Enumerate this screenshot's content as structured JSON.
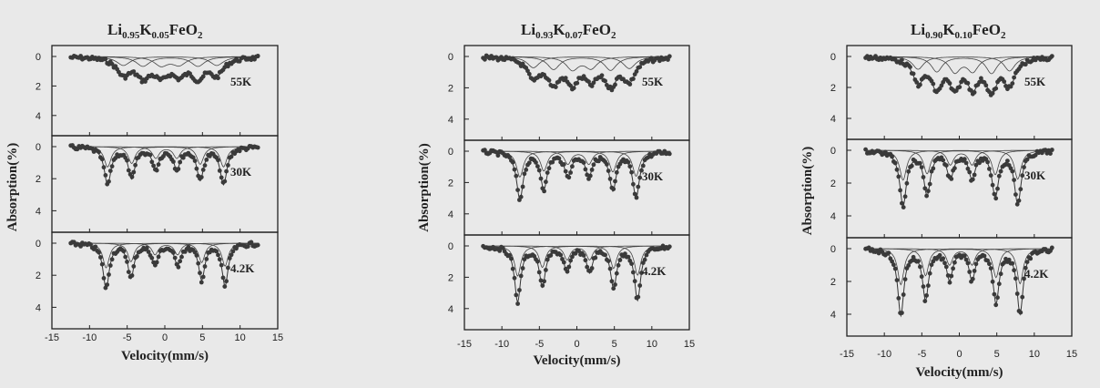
{
  "chart_data": [
    {
      "type": "scatter",
      "title_parts": {
        "base1": "Li",
        "sub1": "0.95",
        "base2": "K",
        "sub2": "0.05",
        "base3": "FeO",
        "sub3": "2"
      },
      "ylabel": "Absorption(%)",
      "xlabel": "Velocity(mm/s)",
      "xlim": [
        -15,
        15
      ],
      "xticks": [
        "-15",
        "-10",
        "-5",
        "0",
        "5",
        "10",
        "15"
      ],
      "panels": [
        {
          "label": "55K",
          "ylim": [
            0,
            5
          ],
          "yticks": [
            "0",
            "2",
            "4"
          ],
          "lines": [
            -5.5,
            -2.9,
            -0.5,
            1.9,
            4.4,
            6.9
          ],
          "depths": [
            1.1,
            1.2,
            1.1,
            1.0,
            1.2,
            1.1
          ],
          "width": 1.1
        },
        {
          "label": "30K",
          "ylim": [
            0,
            5
          ],
          "yticks": [
            "0",
            "2",
            "4"
          ],
          "lines": [
            -7.6,
            -4.4,
            -1.2,
            1.6,
            4.7,
            7.8
          ],
          "depths": [
            2.3,
            1.9,
            1.3,
            1.3,
            2.0,
            2.3
          ],
          "width": 0.55
        },
        {
          "label": "4.2K",
          "ylim": [
            0,
            5
          ],
          "yticks": [
            "0",
            "2",
            "4"
          ],
          "lines": [
            -7.8,
            -4.5,
            -1.3,
            1.7,
            4.9,
            8.0
          ],
          "depths": [
            2.8,
            2.1,
            1.3,
            1.3,
            2.2,
            2.6
          ],
          "width": 0.5
        }
      ]
    },
    {
      "type": "scatter",
      "title_parts": {
        "base1": "Li",
        "sub1": "0.93",
        "base2": "K",
        "sub2": "0.07",
        "base3": "FeO",
        "sub3": "2"
      },
      "ylabel": "Absorption(%)",
      "xlabel": "Velocity(mm/s)",
      "xlim": [
        -15,
        15
      ],
      "xticks": [
        "-15",
        "-10",
        "-5",
        "0",
        "5",
        "10",
        "15"
      ],
      "panels": [
        {
          "label": "55K",
          "ylim": [
            0,
            5
          ],
          "yticks": [
            "0",
            "2",
            "4"
          ],
          "lines": [
            -5.8,
            -3.1,
            -0.6,
            1.9,
            4.5,
            7.0
          ],
          "depths": [
            1.3,
            1.5,
            1.5,
            1.3,
            1.6,
            1.4
          ],
          "width": 1.0
        },
        {
          "label": "30K",
          "ylim": [
            0,
            5
          ],
          "yticks": [
            "0",
            "2",
            "4"
          ],
          "lines": [
            -7.6,
            -4.4,
            -1.2,
            1.6,
            4.8,
            7.9
          ],
          "depths": [
            3.0,
            2.3,
            1.5,
            1.5,
            2.4,
            2.9
          ],
          "width": 0.55
        },
        {
          "label": "4.2K",
          "ylim": [
            0,
            5
          ],
          "yticks": [
            "0",
            "2",
            "4"
          ],
          "lines": [
            -7.9,
            -4.6,
            -1.3,
            1.7,
            4.9,
            8.1
          ],
          "depths": [
            3.5,
            2.5,
            1.6,
            1.6,
            2.6,
            3.4
          ],
          "width": 0.5
        }
      ]
    },
    {
      "type": "scatter",
      "title_parts": {
        "base1": "Li",
        "sub1": "0.90",
        "base2": "K",
        "sub2": "0.10",
        "base3": "FeO",
        "sub3": "2"
      },
      "ylabel": "Absorption(%)",
      "xlabel": "Velocity(mm/s)",
      "xlim": [
        -15,
        15
      ],
      "xticks": [
        "-15",
        "-10",
        "-5",
        "0",
        "5",
        "10",
        "15"
      ],
      "panels": [
        {
          "label": "55K",
          "ylim": [
            0,
            5
          ],
          "yticks": [
            "0",
            "2",
            "4"
          ],
          "lines": [
            -5.5,
            -3.0,
            -0.6,
            1.8,
            4.3,
            6.7
          ],
          "depths": [
            1.5,
            1.8,
            1.8,
            1.7,
            2.0,
            1.7
          ],
          "width": 0.9
        },
        {
          "label": "30K",
          "ylim": [
            0,
            5
          ],
          "yticks": [
            "0",
            "2",
            "4"
          ],
          "lines": [
            -7.5,
            -4.3,
            -1.2,
            1.7,
            4.8,
            7.8
          ],
          "depths": [
            3.3,
            2.6,
            1.6,
            1.6,
            2.7,
            3.2
          ],
          "width": 0.55
        },
        {
          "label": "4.2K",
          "ylim": [
            0,
            5
          ],
          "yticks": [
            "0",
            "2",
            "4"
          ],
          "lines": [
            -7.8,
            -4.5,
            -1.3,
            1.7,
            4.9,
            8.1
          ],
          "depths": [
            4.0,
            3.0,
            1.8,
            1.8,
            3.2,
            3.9
          ],
          "width": 0.5
        }
      ]
    }
  ]
}
